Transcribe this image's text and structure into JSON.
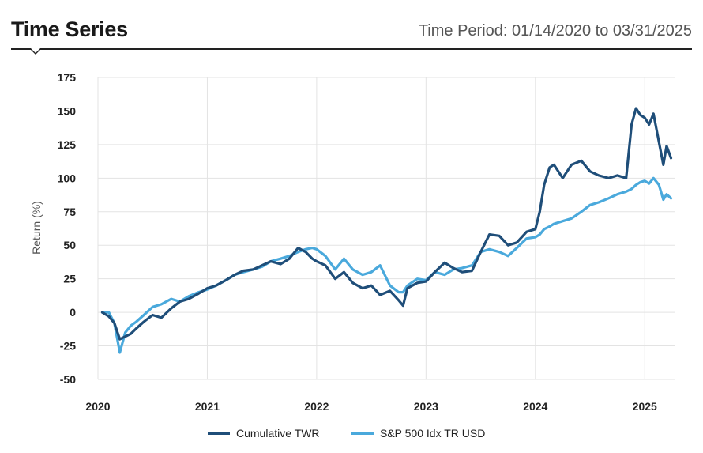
{
  "header": {
    "title": "Time Series",
    "period": "Time Period: 01/14/2020 to 03/31/2025"
  },
  "colors": {
    "series1": "#1f4e79",
    "series2": "#4aa9dc",
    "grid": "#e3e3e3"
  },
  "chart_data": {
    "type": "line",
    "title": "",
    "xlabel": "",
    "ylabel": "Return (%)",
    "xlim": [
      2020.0,
      2025.28
    ],
    "ylim": [
      -50,
      175
    ],
    "yticks": [
      -50,
      -25,
      0,
      25,
      50,
      75,
      100,
      125,
      150,
      175
    ],
    "xticks": [
      "2020",
      "2021",
      "2022",
      "2023",
      "2024",
      "2025"
    ],
    "grid": true,
    "legend": "bottom",
    "series": [
      {
        "name": "Cumulative TWR",
        "x": [
          2020.04,
          2020.1,
          2020.15,
          2020.2,
          2020.25,
          2020.3,
          2020.35,
          2020.42,
          2020.5,
          2020.58,
          2020.67,
          2020.75,
          2020.83,
          2020.92,
          2021.0,
          2021.08,
          2021.17,
          2021.25,
          2021.33,
          2021.42,
          2021.5,
          2021.58,
          2021.67,
          2021.75,
          2021.83,
          2021.9,
          2021.96,
          2022.0,
          2022.08,
          2022.17,
          2022.25,
          2022.33,
          2022.42,
          2022.5,
          2022.58,
          2022.67,
          2022.75,
          2022.79,
          2022.83,
          2022.92,
          2023.0,
          2023.08,
          2023.17,
          2023.25,
          2023.33,
          2023.42,
          2023.5,
          2023.58,
          2023.67,
          2023.75,
          2023.83,
          2023.92,
          2024.0,
          2024.04,
          2024.08,
          2024.13,
          2024.17,
          2024.25,
          2024.33,
          2024.42,
          2024.5,
          2024.58,
          2024.67,
          2024.75,
          2024.83,
          2024.88,
          2024.92,
          2024.96,
          2025.0,
          2025.04,
          2025.08,
          2025.13,
          2025.17,
          2025.2,
          2025.24
        ],
        "values": [
          0,
          -3,
          -8,
          -20,
          -18,
          -16,
          -12,
          -7,
          -2,
          -4,
          3,
          8,
          10,
          14,
          18,
          20,
          24,
          28,
          31,
          32,
          35,
          38,
          36,
          40,
          48,
          45,
          40,
          38,
          35,
          25,
          30,
          22,
          18,
          20,
          13,
          16,
          9,
          5,
          18,
          22,
          23,
          30,
          37,
          33,
          30,
          31,
          45,
          58,
          57,
          50,
          52,
          60,
          62,
          75,
          95,
          108,
          110,
          100,
          110,
          113,
          105,
          102,
          100,
          102,
          100,
          140,
          152,
          147,
          145,
          140,
          148,
          127,
          110,
          124,
          115
        ]
      },
      {
        "name": "S&P 500 Idx TR USD",
        "x": [
          2020.04,
          2020.1,
          2020.15,
          2020.2,
          2020.25,
          2020.3,
          2020.35,
          2020.42,
          2020.5,
          2020.58,
          2020.67,
          2020.75,
          2020.83,
          2020.92,
          2021.0,
          2021.08,
          2021.17,
          2021.25,
          2021.33,
          2021.42,
          2021.5,
          2021.58,
          2021.67,
          2021.75,
          2021.83,
          2021.9,
          2021.96,
          2022.0,
          2022.08,
          2022.17,
          2022.25,
          2022.33,
          2022.42,
          2022.5,
          2022.58,
          2022.67,
          2022.75,
          2022.79,
          2022.83,
          2022.92,
          2023.0,
          2023.08,
          2023.17,
          2023.25,
          2023.33,
          2023.42,
          2023.5,
          2023.58,
          2023.67,
          2023.75,
          2023.83,
          2023.92,
          2024.0,
          2024.04,
          2024.08,
          2024.13,
          2024.17,
          2024.25,
          2024.33,
          2024.42,
          2024.5,
          2024.58,
          2024.67,
          2024.75,
          2024.83,
          2024.88,
          2024.92,
          2024.96,
          2025.0,
          2025.04,
          2025.08,
          2025.13,
          2025.17,
          2025.2,
          2025.24
        ],
        "values": [
          0,
          0,
          -8,
          -30,
          -15,
          -10,
          -7,
          -2,
          4,
          6,
          10,
          8,
          12,
          15,
          17,
          20,
          24,
          28,
          30,
          32,
          34,
          38,
          40,
          42,
          45,
          47,
          48,
          47,
          42,
          32,
          40,
          32,
          28,
          30,
          35,
          20,
          15,
          15,
          20,
          25,
          24,
          30,
          28,
          32,
          33,
          35,
          45,
          47,
          45,
          42,
          48,
          55,
          56,
          58,
          62,
          64,
          66,
          68,
          70,
          75,
          80,
          82,
          85,
          88,
          90,
          92,
          95,
          97,
          98,
          96,
          100,
          95,
          84,
          88,
          85
        ]
      }
    ]
  }
}
